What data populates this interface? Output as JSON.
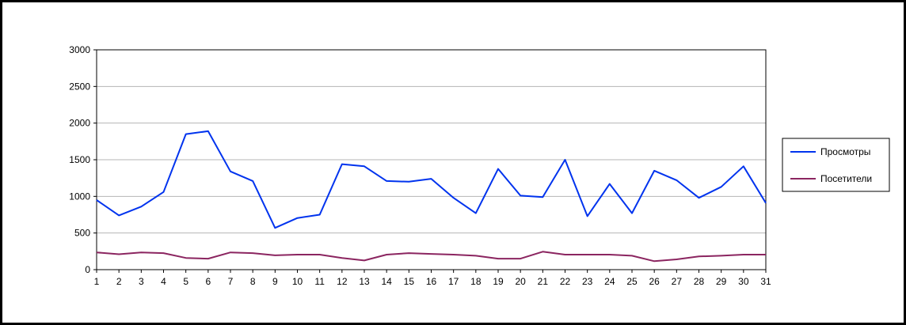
{
  "chart_data": {
    "type": "line",
    "x": [
      1,
      2,
      3,
      4,
      5,
      6,
      7,
      8,
      9,
      10,
      11,
      12,
      13,
      14,
      15,
      16,
      17,
      18,
      19,
      20,
      21,
      22,
      23,
      24,
      25,
      26,
      27,
      28,
      29,
      30,
      31
    ],
    "series": [
      {
        "name": "Просмотры",
        "color": "#0033ee",
        "values": [
          950,
          740,
          860,
          1060,
          1850,
          1890,
          1340,
          1210,
          570,
          705,
          750,
          1440,
          1410,
          1210,
          1200,
          1240,
          980,
          770,
          1375,
          1010,
          990,
          1500,
          730,
          1170,
          770,
          1350,
          1220,
          980,
          1130,
          1410,
          910
        ]
      },
      {
        "name": "Посетители",
        "color": "#8b2560",
        "values": [
          235,
          210,
          235,
          225,
          160,
          150,
          235,
          225,
          195,
          205,
          205,
          160,
          125,
          205,
          225,
          215,
          205,
          190,
          150,
          150,
          245,
          205,
          205,
          205,
          190,
          115,
          140,
          180,
          190,
          205,
          205
        ]
      }
    ],
    "ylim": [
      0,
      3000
    ],
    "yticks": [
      0,
      500,
      1000,
      1500,
      2000,
      2500,
      3000
    ],
    "xticks": [
      1,
      2,
      3,
      4,
      5,
      6,
      7,
      8,
      9,
      10,
      11,
      12,
      13,
      14,
      15,
      16,
      17,
      18,
      19,
      20,
      21,
      22,
      23,
      24,
      25,
      26,
      27,
      28,
      29,
      30,
      31
    ],
    "grid": true,
    "legend_position": "right"
  }
}
